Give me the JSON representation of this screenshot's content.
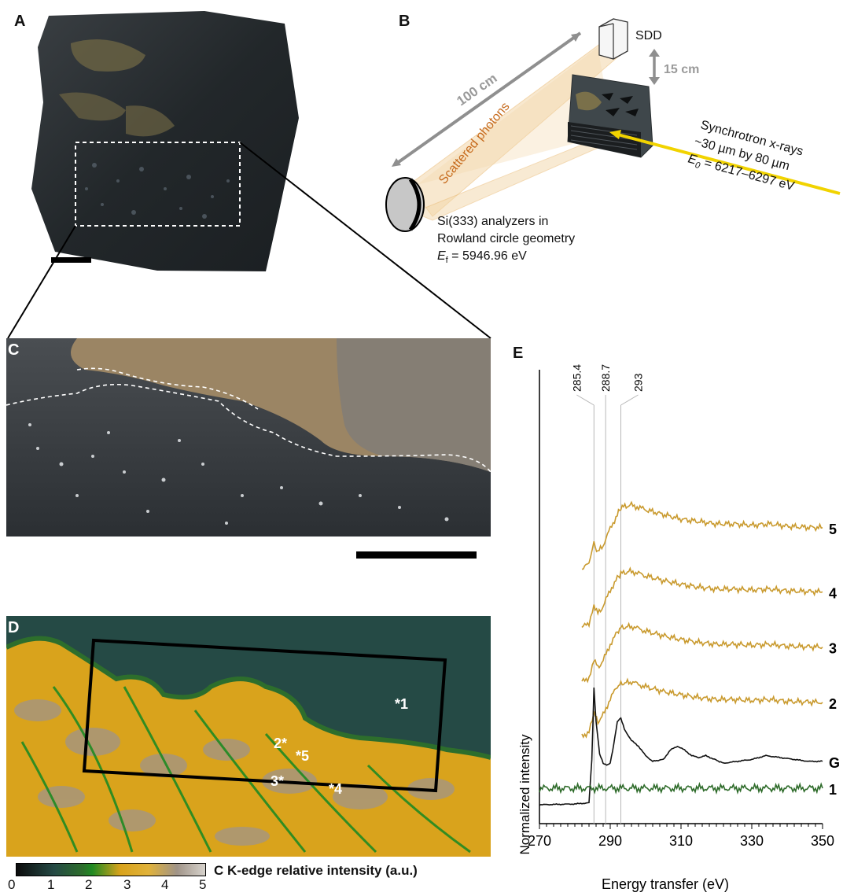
{
  "panels": {
    "A": {
      "label": "A"
    },
    "B": {
      "label": "B",
      "sdd": "SDD",
      "gap": "15 cm",
      "distance": "100 cm",
      "scattered": "Scattered photons",
      "beam_line1": "Synchrotron  x-rays",
      "beam_line2": "~30 µm  by 80 µm",
      "beam_e0_symbol": "E",
      "beam_e0_sub": "0",
      "beam_e0_value": " = 6217–6297 eV",
      "analyzer_line1": "Si(333) analyzers in",
      "analyzer_line2": "Rowland circle geometry",
      "ef_symbol": "E",
      "ef_sub": "f",
      "ef_value": " = 5946.96 eV"
    },
    "C": {
      "label": "C"
    },
    "D": {
      "label": "D",
      "points": [
        "*1",
        "2*",
        "*5",
        "3*",
        "*4"
      ],
      "colorbar_ticks": [
        "0",
        "1",
        "2",
        "3",
        "4",
        "5"
      ],
      "colorbar_label": "C K-edge relative intensity (a.u.)",
      "colormap": [
        "#0b0b0b",
        "#254a45",
        "#2d6e2c",
        "#1f8a22",
        "#d9a31c",
        "#e0b23a",
        "#a09488",
        "#d6d2cc"
      ]
    },
    "E": {
      "label": "E"
    }
  },
  "chart_data": {
    "type": "line",
    "xlabel": "Energy transfer (eV)",
    "ylabel": "Normalized intensity",
    "xlim": [
      270,
      350
    ],
    "xticks": [
      "270",
      "290",
      "310",
      "330",
      "350"
    ],
    "reference_lines": [
      "285.4",
      "288.7",
      "293"
    ],
    "series": [
      {
        "name": "5",
        "color": "#c99a2e",
        "offset": 5.0,
        "x": [
          282,
          284,
          285.4,
          286.5,
          288,
          290,
          292,
          293,
          296,
          300,
          305,
          310,
          315,
          320,
          325,
          330,
          335,
          340,
          345,
          350
        ],
        "y": [
          0,
          0.1,
          0.55,
          0.35,
          0.5,
          0.85,
          1.15,
          1.3,
          1.35,
          1.25,
          1.15,
          1.05,
          1.0,
          0.95,
          0.95,
          0.92,
          0.95,
          0.9,
          0.88,
          0.87
        ]
      },
      {
        "name": "4",
        "color": "#c99a2e",
        "offset": 3.75,
        "x": [
          282,
          284,
          285.4,
          286.5,
          288,
          290,
          292,
          293,
          296,
          300,
          305,
          310,
          315,
          320,
          325,
          330,
          335,
          340,
          345,
          350
        ],
        "y": [
          0,
          0.1,
          0.5,
          0.3,
          0.45,
          0.8,
          1.05,
          1.15,
          1.2,
          1.1,
          1.0,
          0.92,
          0.86,
          0.82,
          0.82,
          0.8,
          0.82,
          0.78,
          0.77,
          0.76
        ]
      },
      {
        "name": "3",
        "color": "#c99a2e",
        "offset": 2.6,
        "x": [
          282,
          284,
          285.4,
          286.5,
          288,
          290,
          292,
          293,
          296,
          300,
          305,
          310,
          315,
          320,
          325,
          330,
          335,
          340,
          345,
          350
        ],
        "y": [
          0,
          0.1,
          0.5,
          0.3,
          0.45,
          0.8,
          1.05,
          1.15,
          1.18,
          1.08,
          0.98,
          0.9,
          0.84,
          0.8,
          0.8,
          0.78,
          0.8,
          0.76,
          0.75,
          0.74
        ]
      },
      {
        "name": "2",
        "color": "#c99a2e",
        "offset": 1.45,
        "x": [
          282,
          284,
          285.4,
          286.5,
          288,
          290,
          292,
          293,
          296,
          300,
          305,
          310,
          315,
          320,
          325,
          330,
          335,
          340,
          345,
          350
        ],
        "y": [
          0,
          0.1,
          0.5,
          0.3,
          0.45,
          0.8,
          1.05,
          1.12,
          1.15,
          1.05,
          0.95,
          0.88,
          0.82,
          0.78,
          0.78,
          0.76,
          0.78,
          0.74,
          0.73,
          0.72
        ]
      },
      {
        "name": "G",
        "color": "#111111",
        "offset": 0,
        "x": [
          270,
          280,
          284,
          284.8,
          285.4,
          286,
          287,
          288,
          289,
          290,
          291,
          292,
          293,
          294,
          296,
          298,
          300,
          302,
          305,
          307,
          309,
          311,
          313,
          315,
          317,
          319,
          322,
          326,
          330,
          334,
          338,
          342,
          346,
          350
        ],
        "y": [
          0,
          0.02,
          0.05,
          1.2,
          3.1,
          2.2,
          1.35,
          1.1,
          1.05,
          1.1,
          1.6,
          2.2,
          2.3,
          2.0,
          1.7,
          1.55,
          1.3,
          1.15,
          1.2,
          1.45,
          1.55,
          1.45,
          1.3,
          1.25,
          1.3,
          1.22,
          1.1,
          1.15,
          1.2,
          1.3,
          1.25,
          1.2,
          1.15,
          1.15
        ]
      },
      {
        "name": "1",
        "color": "#2e6b2a",
        "offset": 0,
        "x": [
          270,
          350
        ],
        "y": [
          0.35,
          0.35
        ]
      }
    ]
  }
}
